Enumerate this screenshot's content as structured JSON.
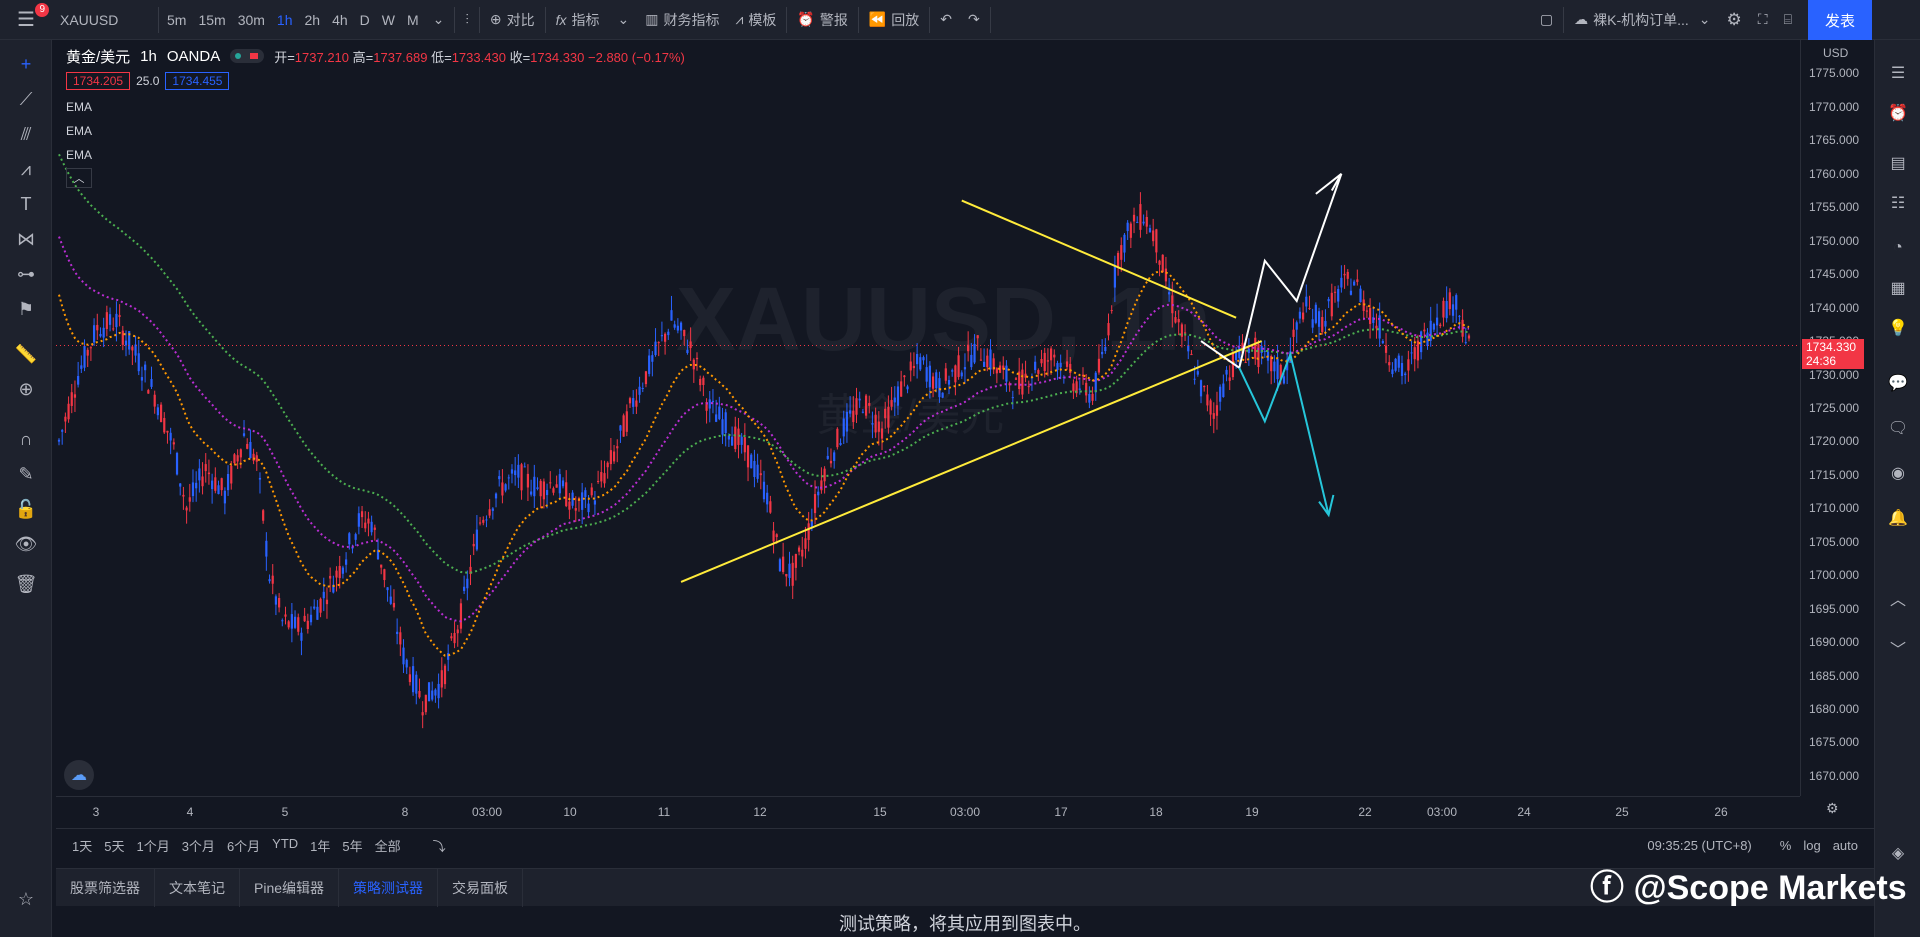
{
  "topbar": {
    "notification_count": "9",
    "symbol": "XAUUSD",
    "intervals": [
      "5m",
      "15m",
      "30m",
      "1h",
      "2h",
      "4h",
      "D",
      "W",
      "M"
    ],
    "active_interval": "1h",
    "compare": "对比",
    "indicators": "指标",
    "financials": "财务指标",
    "templates": "模板",
    "alerts": "警报",
    "replay": "回放",
    "layout_name": "裸K-机构订单...",
    "publish": "发表"
  },
  "legend": {
    "title": "黄金/美元",
    "interval": "1h",
    "broker": "OANDA",
    "open_label": "开=",
    "open": "1737.210",
    "high_label": "高=",
    "high": "1737.689",
    "low_label": "低=",
    "low": "1733.430",
    "close_label": "收=",
    "close": "1734.330",
    "change": "−2.880 (−0.17%)",
    "bid": "1734.205",
    "spread": "25.0",
    "ask": "1734.455",
    "indicators": [
      "EMA",
      "EMA",
      "EMA"
    ]
  },
  "price_scale": {
    "currency": "USD",
    "labels": [
      "1775.000",
      "1770.000",
      "1765.000",
      "1760.000",
      "1755.000",
      "1750.000",
      "1745.000",
      "1740.000",
      "1735.000",
      "1730.000",
      "1725.000",
      "1720.000",
      "1715.000",
      "1710.000",
      "1705.000",
      "1700.000",
      "1695.000",
      "1690.000",
      "1685.000",
      "1680.000",
      "1675.000",
      "1670.000"
    ],
    "current_price": "1734.330",
    "countdown": "24:36"
  },
  "time_axis": {
    "labels": [
      "3",
      "4",
      "5",
      "8",
      "03:00",
      "10",
      "11",
      "12",
      "15",
      "03:00",
      "17",
      "18",
      "19",
      "22",
      "03:00",
      "24",
      "25",
      "26"
    ]
  },
  "watermark_chart": {
    "symbol": "XAUUSD, 1h",
    "name": "黄金/美元"
  },
  "range_bar": {
    "ranges": [
      "1天",
      "5天",
      "1个月",
      "3个月",
      "6个月",
      "YTD",
      "1年",
      "5年",
      "全部"
    ],
    "clock": "09:35:25 (UTC+8)",
    "percent": "%",
    "log": "log",
    "auto": "auto"
  },
  "bottom_tabs": {
    "tabs": [
      "股票筛选器",
      "文本笔记",
      "Pine编辑器",
      "策略测试器",
      "交易面板"
    ],
    "active": "策略测试器"
  },
  "panel_message": "测试策略，将其应用到图表中。",
  "watermark": "@Scope Markets",
  "chart_data": {
    "type": "candlestick",
    "symbol": "XAUUSD",
    "ylim": [
      1667,
      1780
    ],
    "x_labels": [
      "3",
      "4",
      "5",
      "8",
      "03:00",
      "10",
      "11",
      "12",
      "15",
      "03:00",
      "17",
      "18",
      "19",
      "22",
      "03:00",
      "24",
      "25",
      "26"
    ],
    "last_close": 1734.33,
    "colors": {
      "up": "#2962ff",
      "down": "#f23645",
      "ema_fast": "#ff9800",
      "ema_mid": "#ba2ed3",
      "ema_slow": "#4caf50",
      "trendline": "#ffeb3b",
      "bull_arrow": "#ffffff",
      "bear_arrow": "#26c6da"
    }
  }
}
